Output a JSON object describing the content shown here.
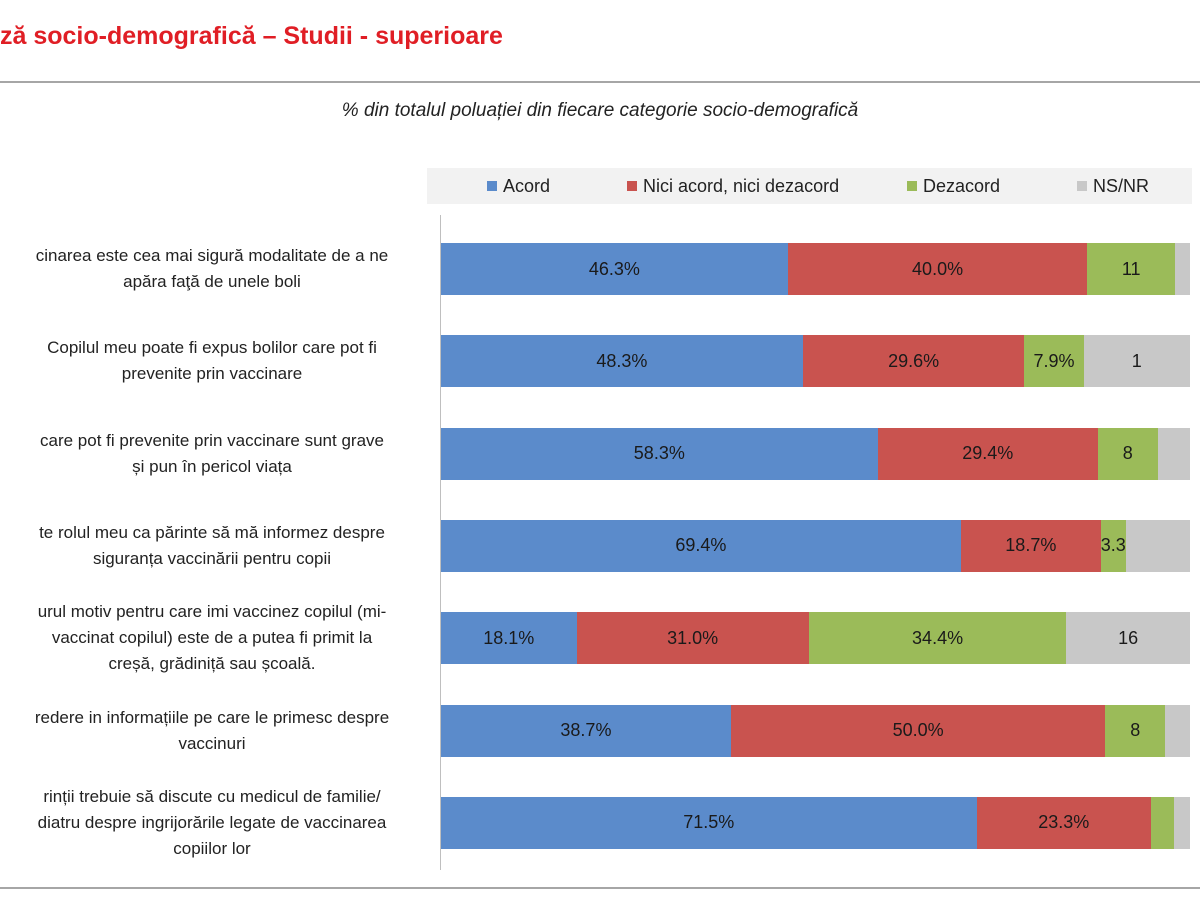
{
  "header": {
    "title": "ză socio-demografică – Studii - superioare"
  },
  "chart_data": {
    "type": "bar",
    "orientation": "horizontal-stacked-100",
    "subtitle": "% din totalul poluației din fiecare categorie socio-demografică",
    "legend_position": "top",
    "series": [
      {
        "name": "Acord",
        "color": "#5b8bcb",
        "values": [
          46.3,
          48.3,
          58.3,
          69.4,
          18.1,
          38.7,
          71.5
        ]
      },
      {
        "name": "Nici acord, nici dezacord",
        "color": "#c9534f",
        "values": [
          40.0,
          29.6,
          29.4,
          18.7,
          31.0,
          50.0,
          23.3
        ]
      },
      {
        "name": "Dezacord",
        "color": "#9bbb59",
        "values": [
          11.7,
          7.9,
          8.0,
          3.3,
          34.4,
          8.0,
          3.0
        ]
      },
      {
        "name": "NS/NR",
        "color": "#c8c8c8",
        "values": [
          2.0,
          14.2,
          4.3,
          8.6,
          16.5,
          3.3,
          2.2
        ]
      }
    ],
    "value_labels": [
      [
        "46.3%",
        "40.0%",
        "11",
        ""
      ],
      [
        "48.3%",
        "29.6%",
        "7.9%",
        "1"
      ],
      [
        "58.3%",
        "29.4%",
        "8",
        ""
      ],
      [
        "69.4%",
        "18.7%",
        "3.3",
        ""
      ],
      [
        "18.1%",
        "31.0%",
        "34.4%",
        "16"
      ],
      [
        "38.7%",
        "50.0%",
        "8",
        ""
      ],
      [
        "71.5%",
        "23.3%",
        "",
        ""
      ]
    ],
    "categories": [
      [
        "cinarea este cea mai sigură modalitate de a ne",
        "apăra faţă de unele boli"
      ],
      [
        "Copilul meu poate fi  expus  bolilor care pot fi",
        "prevenite prin vaccinare"
      ],
      [
        "care pot fi prevenite prin vaccinare sunt grave",
        "și pun în pericol viața"
      ],
      [
        "te rolul meu ca părinte să mă informez despre",
        "siguranța vaccinării pentru copii"
      ],
      [
        "urul motiv pentru care imi vaccinez copilul (mi-",
        "vaccinat copilul) este  de a putea fi primit  la",
        "creșă, grădiniță sau școală."
      ],
      [
        "redere in informațiile pe care le primesc despre",
        "vaccinuri"
      ],
      [
        "rinții trebuie să discute cu medicul de familie/",
        "diatru despre ingrijorările legate de vaccinarea",
        "copiilor lor"
      ]
    ],
    "xlim": [
      0,
      100
    ]
  }
}
